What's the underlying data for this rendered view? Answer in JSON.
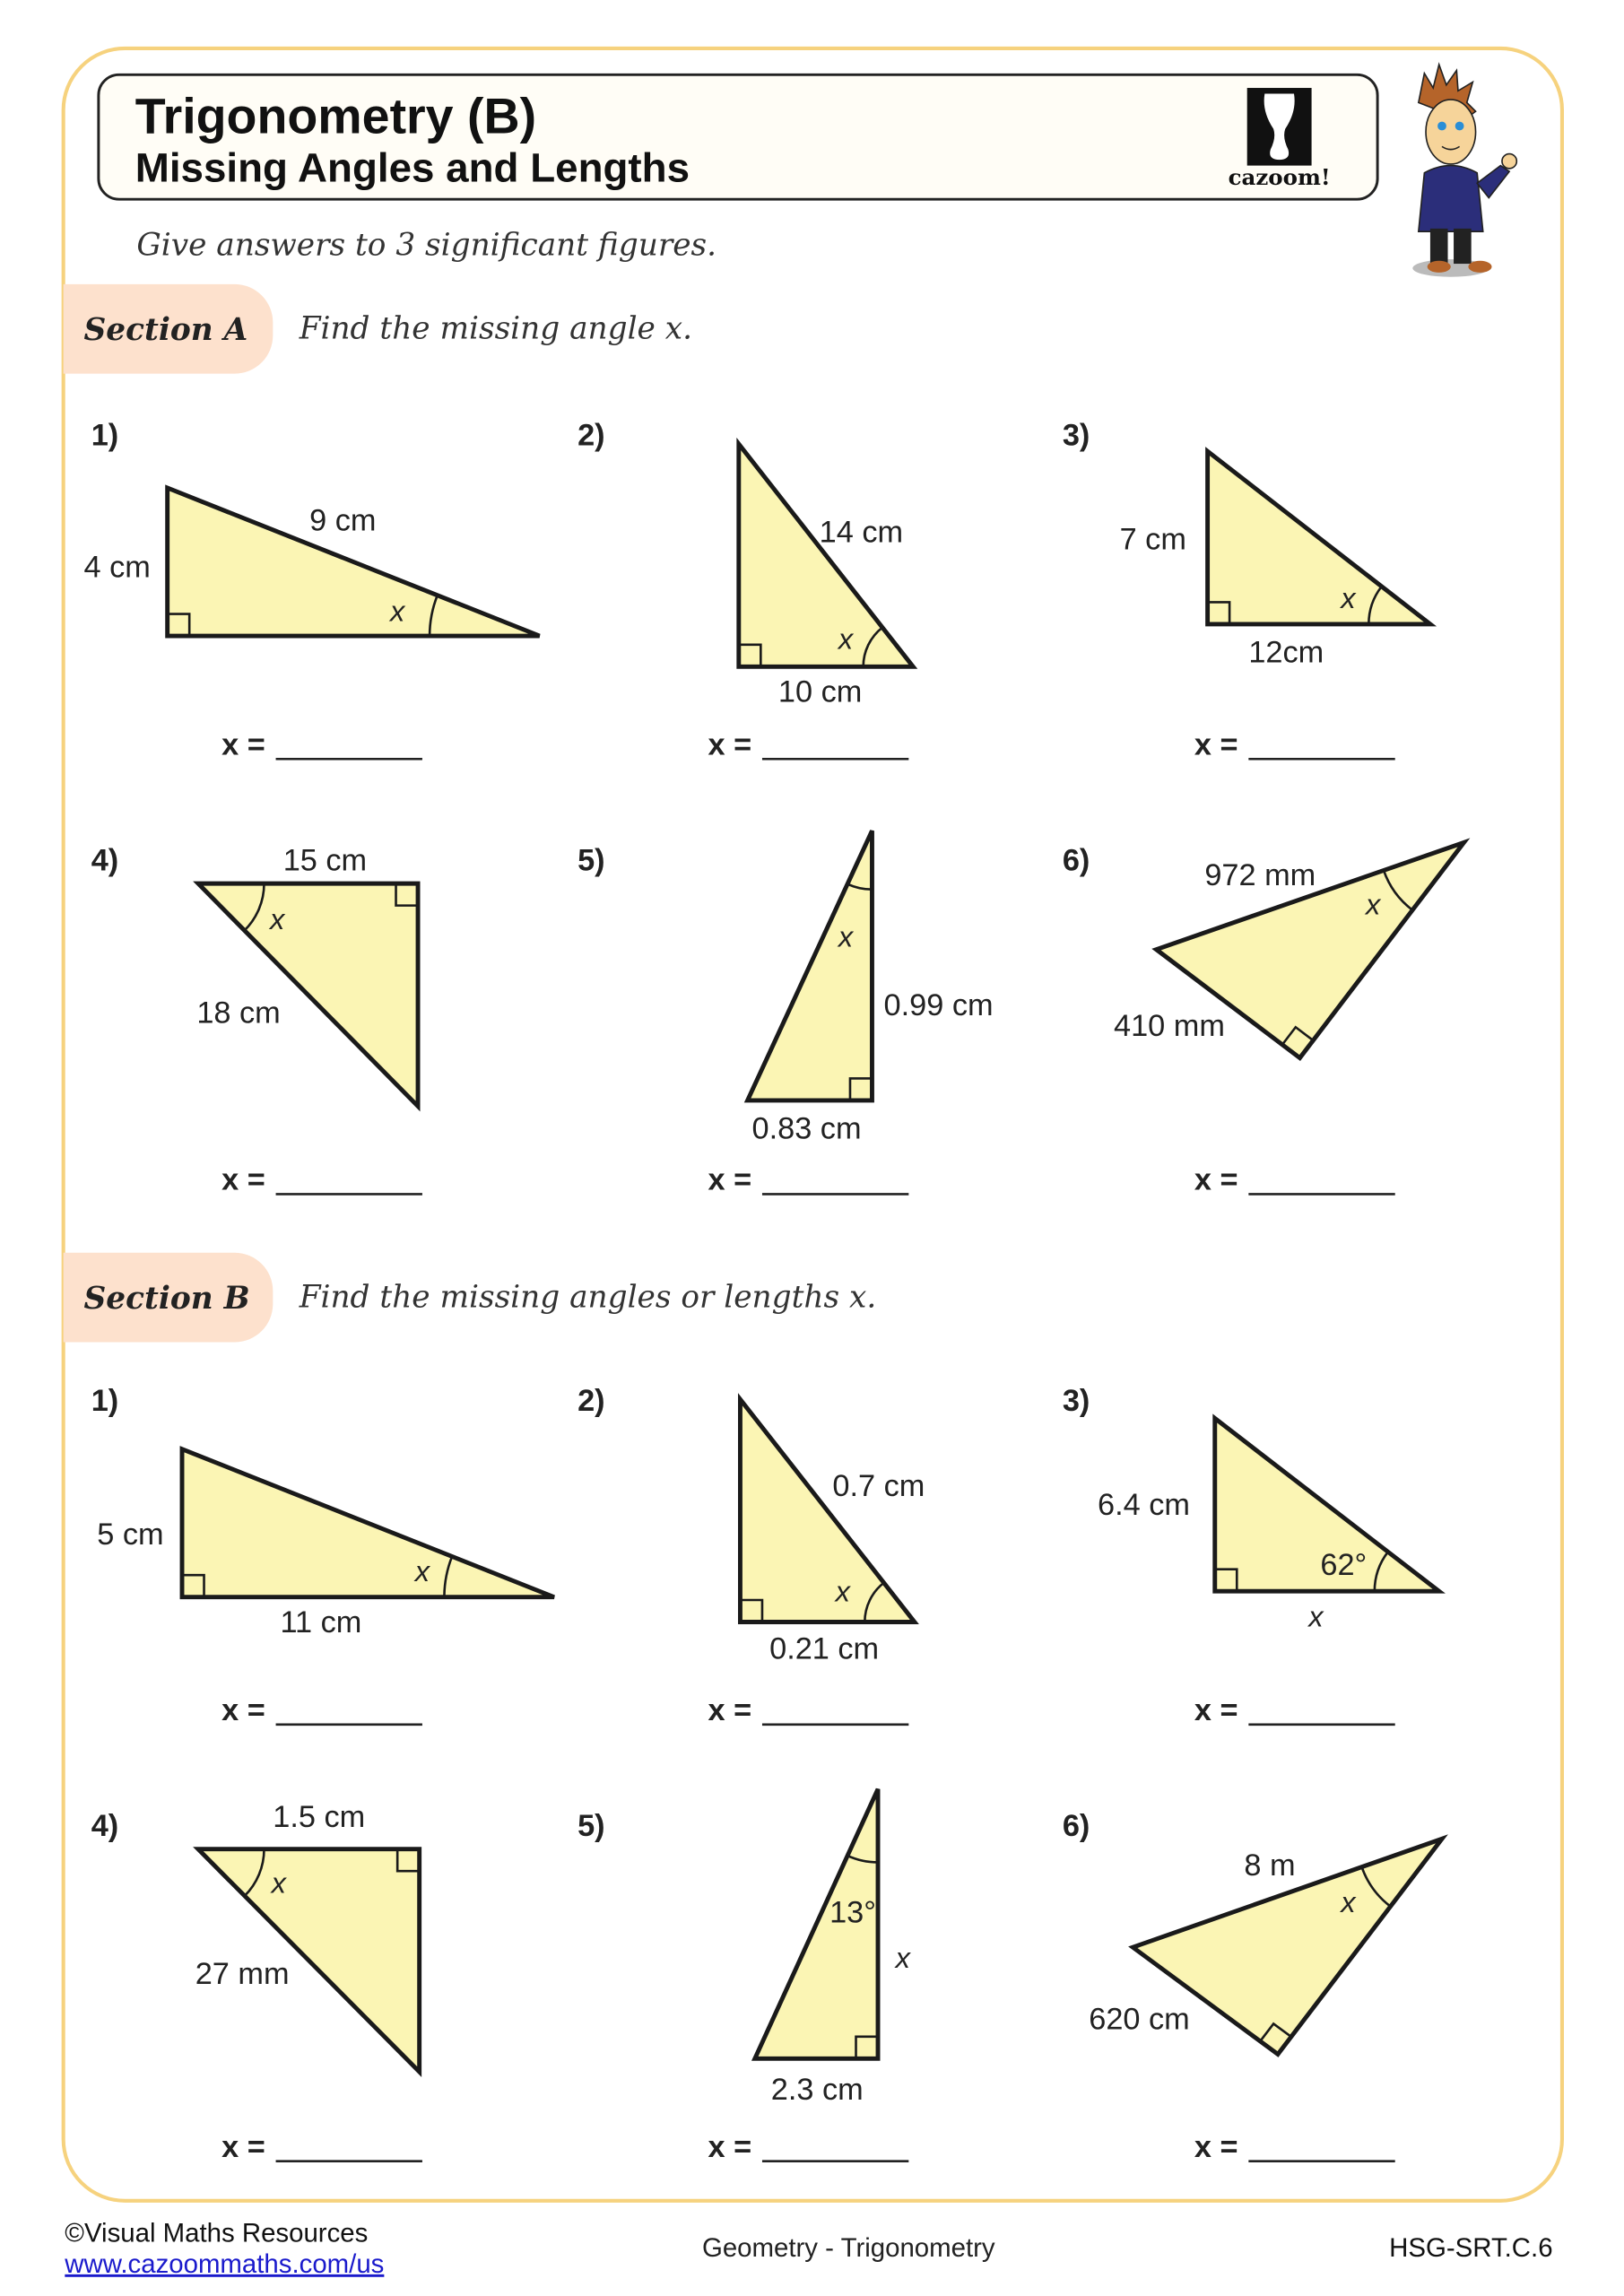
{
  "header": {
    "title": "Trigonometry (B)",
    "subtitle": "Missing Angles and Lengths",
    "logo_text": "cazoom!",
    "instructions": "Give answers to 3 significant figures."
  },
  "colors": {
    "border": "#f6d27e",
    "section_pill": "#fde1cd",
    "triangle_fill": "#fbf5b4",
    "link": "#1a1acc"
  },
  "answer_label": "x =",
  "sections": [
    {
      "label": "Section A",
      "instruction": "Find the missing angle x.",
      "questions": [
        {
          "number": "1)",
          "labels": [
            "4 cm",
            "9 cm",
            "x"
          ]
        },
        {
          "number": "2)",
          "labels": [
            "14 cm",
            "10 cm",
            "x"
          ]
        },
        {
          "number": "3)",
          "labels": [
            "7 cm",
            "12cm",
            "x"
          ]
        },
        {
          "number": "4)",
          "labels": [
            "15 cm",
            "18 cm",
            "x"
          ]
        },
        {
          "number": "5)",
          "labels": [
            "0.99 cm",
            "0.83 cm",
            "x"
          ]
        },
        {
          "number": "6)",
          "labels": [
            "972 mm",
            "410 mm",
            "x"
          ]
        }
      ]
    },
    {
      "label": "Section B",
      "instruction": "Find the missing angles or lengths x.",
      "questions": [
        {
          "number": "1)",
          "labels": [
            "5 cm",
            "11 cm",
            "x"
          ]
        },
        {
          "number": "2)",
          "labels": [
            "0.7 cm",
            "0.21 cm",
            "x"
          ]
        },
        {
          "number": "3)",
          "labels": [
            "6.4 cm",
            "62°",
            "x"
          ]
        },
        {
          "number": "4)",
          "labels": [
            "1.5 cm",
            "27 mm",
            "x"
          ]
        },
        {
          "number": "5)",
          "labels": [
            "13°",
            "x",
            "2.3 cm"
          ]
        },
        {
          "number": "6)",
          "labels": [
            "8 m",
            "620 cm",
            "x"
          ]
        }
      ]
    }
  ],
  "footer": {
    "copyright": "©Visual Maths Resources",
    "link": "www.cazoommaths.com/us",
    "topic": "Geometry - Trigonometry",
    "standard": "HSG-SRT.C.6"
  }
}
